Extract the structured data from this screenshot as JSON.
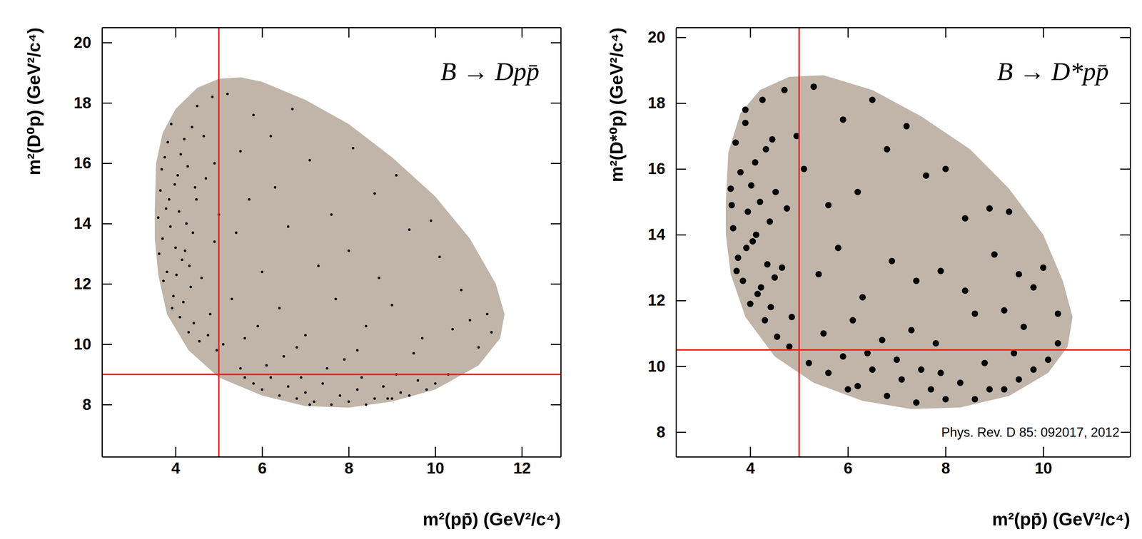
{
  "chart_data": [
    {
      "type": "scatter",
      "title": "B → Dpp̄",
      "x_label": "m²(pp̄) (GeV²/c⁴)",
      "y_label": "m²(D⁰p) (GeV²/c⁴)",
      "xlim": [
        2.3,
        12.9
      ],
      "ylim": [
        6.27,
        20.5
      ],
      "xticks": [
        4,
        6,
        8,
        10,
        12
      ],
      "yticks": [
        8,
        10,
        12,
        14,
        16,
        18,
        20
      ],
      "region": {
        "color": "#c1b5aa",
        "x": [
          3.52,
          3.55,
          3.7,
          4.0,
          4.5,
          5.0,
          5.5,
          6.0,
          7,
          8,
          9,
          10,
          10.8,
          11.4,
          11.6,
          11.5,
          11,
          10,
          9,
          8,
          7,
          6,
          5,
          4.3,
          3.8,
          3.6,
          3.52
        ],
        "y": [
          14.5,
          16,
          17,
          17.8,
          18.5,
          18.8,
          18.85,
          18.7,
          18.1,
          17.3,
          16.2,
          14.9,
          13.5,
          12,
          11,
          10.2,
          9.3,
          8.5,
          8.1,
          7.9,
          7.95,
          8.3,
          8.9,
          9.8,
          11,
          12.3,
          13.5
        ]
      },
      "cut_lines": {
        "color": "#e3241b",
        "x": [
          5
        ],
        "y": [
          9
        ]
      },
      "series": [
        {
          "color": "#000000",
          "marker": "dot",
          "x": [
            3.6,
            3.65,
            3.7,
            3.75,
            3.8,
            3.85,
            3.9,
            3.95,
            4.0,
            4.05,
            4.1,
            4.15,
            4.2,
            4.25,
            4.3,
            4.35,
            4.4,
            4.45,
            4.5,
            4.55,
            3.62,
            3.68,
            3.72,
            3.78,
            3.82,
            3.88,
            3.92,
            3.98,
            4.02,
            4.08,
            4.12,
            4.18,
            4.22,
            4.28,
            4.32,
            4.38,
            4.42,
            4.48,
            4.6,
            4.7,
            4.8,
            4.9,
            4.65,
            4.75,
            4.85,
            4.95,
            5.5,
            5.8,
            6.0,
            6.2,
            6.4,
            6.6,
            6.8,
            7.0,
            7.2,
            7.4,
            7.6,
            7.8,
            8.0,
            8.2,
            8.4,
            8.6,
            8.8,
            9.0,
            9.2,
            9.4,
            9.6,
            9.8,
            10.0,
            10.3,
            6.1,
            6.9,
            7.5,
            8.3,
            9.1,
            5.6,
            7.1,
            8.9,
            6.5,
            7.9,
            5.2,
            5.5,
            5.8,
            6.3,
            6.7,
            7.1,
            7.6,
            8.1,
            8.6,
            9.1,
            5.4,
            6.0,
            6.6,
            7.3,
            8.0,
            8.7,
            9.4,
            10.1,
            10.6,
            11.2,
            5.3,
            5.9,
            6.4,
            7.0,
            7.7,
            8.4,
            9.0,
            9.7,
            10.4,
            11.0,
            5.1,
            5.6,
            6.8,
            8.2,
            9.5,
            10.8,
            5.7,
            6.2,
            4.9,
            5.0,
            11.3,
            9.9
          ],
          "values": [
            14.2,
            15.1,
            13.5,
            16.2,
            12.4,
            14.8,
            17.3,
            11.6,
            13.2,
            15.6,
            10.9,
            12.8,
            16.8,
            14.0,
            10.4,
            11.9,
            13.7,
            15.2,
            17.9,
            10.1,
            13.0,
            15.8,
            12.1,
            14.5,
            16.7,
            13.9,
            11.2,
            15.3,
            12.3,
            14.4,
            16.3,
            11.4,
            13.1,
            15.9,
            12.6,
            17.2,
            10.7,
            14.8,
            12.2,
            15.5,
            11.0,
            13.4,
            16.9,
            10.3,
            18.2,
            9.8,
            9.2,
            8.7,
            8.5,
            8.9,
            8.3,
            8.6,
            8.2,
            8.4,
            8.1,
            8.7,
            8.0,
            8.3,
            8.1,
            8.5,
            8.0,
            8.2,
            8.6,
            8.2,
            8.4,
            8.3,
            8.8,
            8.5,
            8.7,
            9.0,
            9.3,
            8.9,
            9.2,
            8.9,
            9.0,
            8.9,
            8.0,
            8.2,
            9.6,
            9.5,
            18.3,
            16.4,
            17.6,
            15.2,
            17.8,
            16.1,
            14.3,
            16.5,
            15.0,
            15.6,
            13.7,
            12.4,
            13.9,
            12.6,
            13.1,
            12.2,
            13.8,
            12.9,
            11.8,
            11.0,
            11.5,
            10.6,
            11.2,
            10.3,
            11.5,
            10.6,
            11.3,
            10.2,
            10.5,
            9.9,
            10.0,
            10.2,
            9.9,
            9.8,
            9.7,
            10.8,
            14.8,
            16.9,
            16.0,
            14.3,
            10.4,
            14.1
          ]
        }
      ]
    },
    {
      "type": "scatter",
      "title": "B → D*pp̄",
      "x_label": "m²(pp̄) (GeV²/c⁴)",
      "y_label": "m²(D*⁰p) (GeV²/c⁴)",
      "xlim": [
        2.48,
        11.78
      ],
      "ylim": [
        7.25,
        20.3
      ],
      "xticks": [
        4,
        6,
        8,
        10
      ],
      "yticks": [
        8,
        10,
        12,
        14,
        16,
        18,
        20
      ],
      "annotations": [
        "Phys. Rev. D 85: 092017, 2012"
      ],
      "region": {
        "color": "#c1b5aa",
        "x": [
          3.5,
          3.55,
          3.8,
          4.2,
          4.8,
          5.5,
          6.5,
          7.5,
          8.5,
          9.3,
          10,
          10.4,
          10.6,
          10.5,
          10.1,
          9.3,
          8.3,
          7.3,
          6.3,
          5.3,
          4.5,
          3.9,
          3.6,
          3.5
        ],
        "y": [
          15,
          16.5,
          17.7,
          18.4,
          18.8,
          18.85,
          18.4,
          17.6,
          16.6,
          15.4,
          14,
          12.6,
          11.5,
          10.6,
          9.8,
          9.1,
          8.75,
          8.7,
          8.95,
          9.5,
          10.3,
          11.5,
          12.8,
          14
        ]
      },
      "cut_lines": {
        "color": "#e3241b",
        "x": [
          5
        ],
        "y": [
          10.5
        ]
      },
      "series": [
        {
          "color": "#000000",
          "marker": "circle",
          "x": [
            3.6,
            3.65,
            3.7,
            3.75,
            3.8,
            3.85,
            3.9,
            3.95,
            4.0,
            4.05,
            4.1,
            4.15,
            4.2,
            4.25,
            4.3,
            4.35,
            4.4,
            4.45,
            4.5,
            4.55,
            3.62,
            3.72,
            3.9,
            3.92,
            4.02,
            4.12,
            4.22,
            4.32,
            4.42,
            4.52,
            4.65,
            4.75,
            4.85,
            4.95,
            4.7,
            4.8,
            5.3,
            5.1,
            5.6,
            5.9,
            6.2,
            6.5,
            6.8,
            7.2,
            7.6,
            8.0,
            8.4,
            8.9,
            9.3,
            5.4,
            5.8,
            6.3,
            6.9,
            7.4,
            7.9,
            8.4,
            9.0,
            9.5,
            9.8,
            10.0,
            10.3,
            9.6,
            9.2,
            5.5,
            6.1,
            6.7,
            7.3,
            7.8,
            8.6,
            5.2,
            5.6,
            5.9,
            6.2,
            6.5,
            6.8,
            7.1,
            7.4,
            7.7,
            8.0,
            8.3,
            8.6,
            8.9,
            9.2,
            9.5,
            9.8,
            10.1,
            6.0,
            7.0,
            7.9,
            8.8,
            9.4,
            6.4,
            7.5,
            10.3
          ],
          "values": [
            15.4,
            14.2,
            16.8,
            13.3,
            15.9,
            12.6,
            17.4,
            14.7,
            11.9,
            13.8,
            16.2,
            12.2,
            15.0,
            18.1,
            11.4,
            13.1,
            14.4,
            16.9,
            12.7,
            10.9,
            14.9,
            12.9,
            17.8,
            13.6,
            15.5,
            14.0,
            12.4,
            16.6,
            11.8,
            15.3,
            13.0,
            14.8,
            11.5,
            17.0,
            18.4,
            10.6,
            18.5,
            16.0,
            14.9,
            17.5,
            15.3,
            18.1,
            16.6,
            17.3,
            15.8,
            16.0,
            14.5,
            14.8,
            14.7,
            12.8,
            13.6,
            12.1,
            13.2,
            12.6,
            12.9,
            12.3,
            13.4,
            12.8,
            12.4,
            13.0,
            11.6,
            11.2,
            11.7,
            11.0,
            11.4,
            10.8,
            11.1,
            10.7,
            11.6,
            10.1,
            9.8,
            10.3,
            9.4,
            9.9,
            9.1,
            9.6,
            8.9,
            9.3,
            9.0,
            9.5,
            9.0,
            9.3,
            9.3,
            9.6,
            9.9,
            10.2,
            9.3,
            10.2,
            9.8,
            10.1,
            10.4,
            10.4,
            9.9,
            10.7
          ]
        }
      ]
    }
  ]
}
